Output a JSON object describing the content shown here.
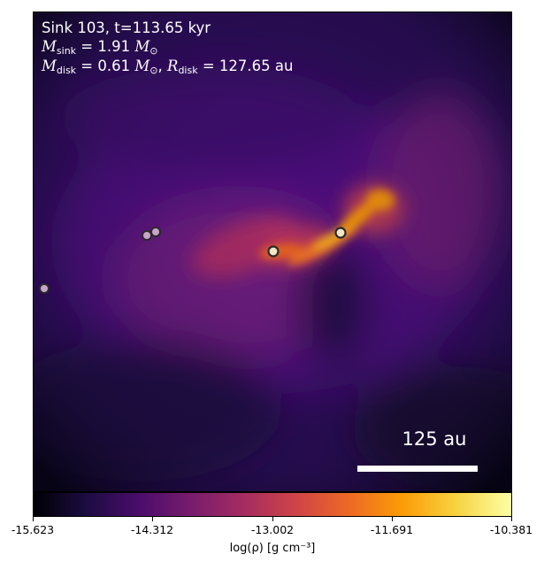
{
  "title": "Sink 103, t=113.65 kyr",
  "m_sink_value": "1.91",
  "m_disk_value": "0.61",
  "r_disk_value": "127.65",
  "unit_msun": "M",
  "unit_au": "au",
  "scale_bar_label": "125 au",
  "colorbar": {
    "label": "log(ρ) [g cm⁻³]",
    "ticks": [
      "-15.623",
      "-14.312",
      "-13.002",
      "-11.691",
      "-10.381"
    ],
    "colormap": "inferno"
  },
  "colors": {
    "annotation": "#ffffff",
    "sink_outline": "#2a2a2a"
  }
}
